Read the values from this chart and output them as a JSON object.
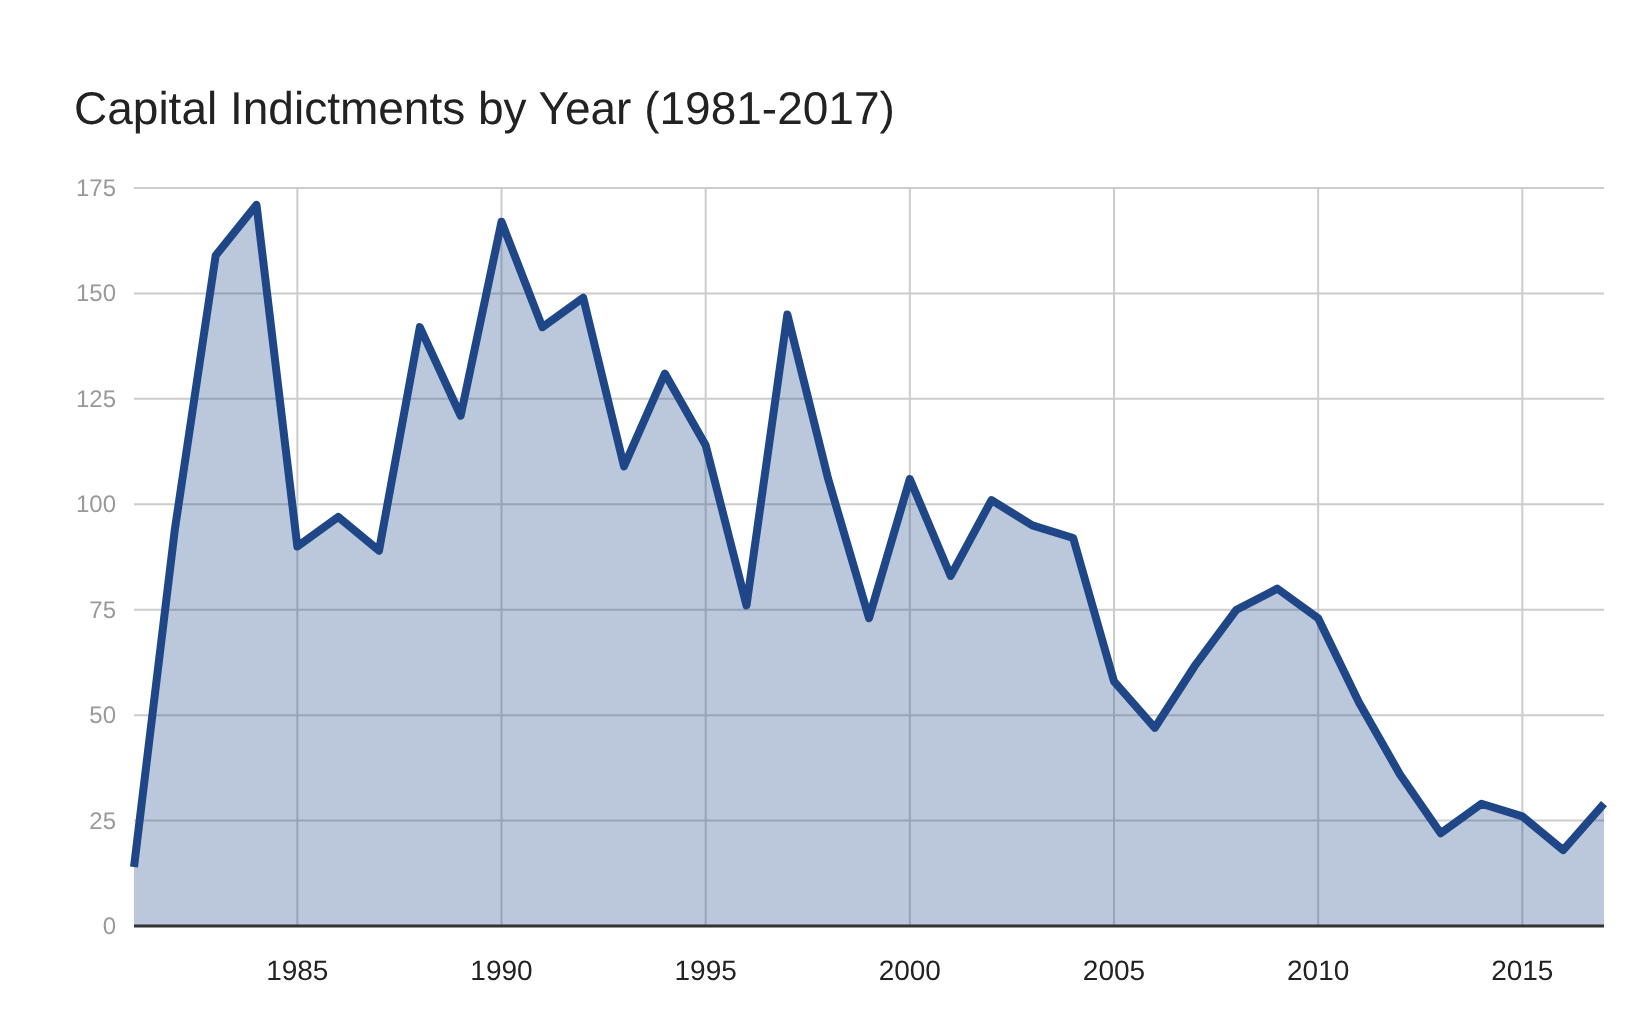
{
  "chart_data": {
    "type": "area",
    "title": "Capital Indictments by Year (1981-2017)",
    "x": [
      1981,
      1982,
      1983,
      1984,
      1985,
      1986,
      1987,
      1988,
      1989,
      1990,
      1991,
      1992,
      1993,
      1994,
      1995,
      1996,
      1997,
      1998,
      1999,
      2000,
      2001,
      2002,
      2003,
      2004,
      2005,
      2006,
      2007,
      2008,
      2009,
      2010,
      2011,
      2012,
      2013,
      2014,
      2015,
      2016,
      2017
    ],
    "series": [
      {
        "color": "#1f4788",
        "values": [
          14,
          94,
          159,
          171,
          90,
          97,
          89,
          142,
          121,
          167,
          142,
          149,
          109,
          131,
          114,
          76,
          145,
          106,
          73,
          106,
          83,
          101,
          95,
          92,
          58,
          47,
          62,
          75,
          80,
          73,
          53,
          36,
          22,
          29,
          26,
          18,
          29
        ]
      }
    ],
    "xlim": [
      1981,
      2017
    ],
    "xticks": [
      1985,
      1990,
      1995,
      2000,
      2005,
      2010,
      2015
    ],
    "ylim": [
      0,
      175
    ],
    "yticks": [
      0,
      25,
      50,
      75,
      100,
      125,
      150,
      175
    ],
    "grid": true
  }
}
